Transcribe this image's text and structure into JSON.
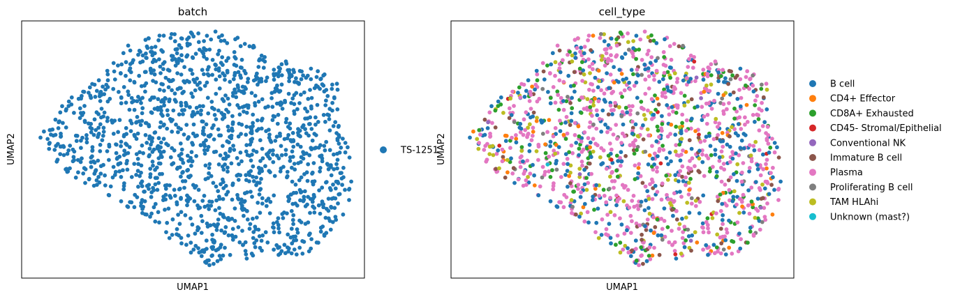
{
  "chart_data": [
    {
      "type": "scatter",
      "title": "batch",
      "xlabel": "UMAP1",
      "ylabel": "UMAP2",
      "xlim": [
        0,
        10
      ],
      "ylim": [
        0,
        10
      ],
      "grid": false,
      "legend_position": "right",
      "legend": [
        {
          "name": "TS-1251",
          "color": "#1f77b4"
        }
      ],
      "series": [
        {
          "name": "TS-1251",
          "color": "#1f77b4",
          "n_points": 1500
        }
      ]
    },
    {
      "type": "scatter",
      "title": "cell_type",
      "xlabel": "UMAP1",
      "ylabel": "UMAP2",
      "xlim": [
        0,
        10
      ],
      "ylim": [
        0,
        10
      ],
      "grid": false,
      "legend_position": "right",
      "legend": [
        {
          "name": "B cell",
          "color": "#1f77b4"
        },
        {
          "name": "CD4+ Effector",
          "color": "#ff7f0e"
        },
        {
          "name": "CD8A+ Exhausted",
          "color": "#2ca02c"
        },
        {
          "name": "CD45- Stromal/Epithelial",
          "color": "#d62728"
        },
        {
          "name": "Conventional NK",
          "color": "#9467bd"
        },
        {
          "name": "Immature B cell",
          "color": "#8c564b"
        },
        {
          "name": "Plasma",
          "color": "#e377c2"
        },
        {
          "name": "Proliferating B cell",
          "color": "#7f7f7f"
        },
        {
          "name": "TAM HLAhi",
          "color": "#bcbd22"
        },
        {
          "name": "Unknown (mast?)",
          "color": "#17becf"
        }
      ],
      "series": [
        {
          "name": "B cell",
          "color": "#1f77b4",
          "n_points": 360
        },
        {
          "name": "CD4+ Effector",
          "color": "#ff7f0e",
          "n_points": 60
        },
        {
          "name": "CD8A+ Exhausted",
          "color": "#2ca02c",
          "n_points": 150
        },
        {
          "name": "CD45- Stromal/Epithelial",
          "color": "#d62728",
          "n_points": 12
        },
        {
          "name": "Conventional NK",
          "color": "#9467bd",
          "n_points": 6
        },
        {
          "name": "Immature B cell",
          "color": "#8c564b",
          "n_points": 90
        },
        {
          "name": "Plasma",
          "color": "#e377c2",
          "n_points": 660
        },
        {
          "name": "Proliferating B cell",
          "color": "#7f7f7f",
          "n_points": 40
        },
        {
          "name": "TAM HLAhi",
          "color": "#bcbd22",
          "n_points": 120
        },
        {
          "name": "Unknown (mast?)",
          "color": "#17becf",
          "n_points": 2
        }
      ]
    }
  ]
}
